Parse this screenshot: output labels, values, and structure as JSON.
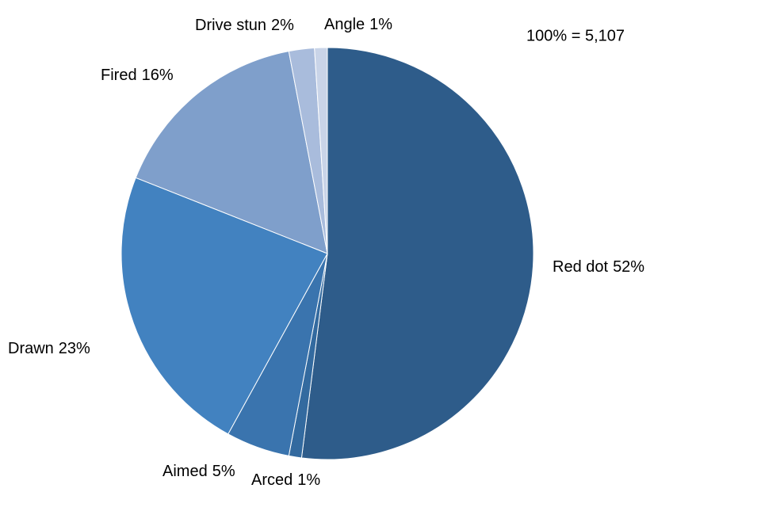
{
  "chart_data": {
    "type": "pie",
    "annotation": "100% = 5,107",
    "categories": [
      "Red dot",
      "Arced",
      "Aimed",
      "Drawn",
      "Fired",
      "Drive stun",
      "Angle"
    ],
    "values": [
      52,
      1,
      5,
      23,
      16,
      2,
      1
    ],
    "value_labels": [
      "52%",
      "1%",
      "5%",
      "23%",
      "16%",
      "2%",
      "1%"
    ],
    "colors": [
      "#2e5c8a",
      "#336a9f",
      "#3a74ae",
      "#4282c0",
      "#7f9fcb",
      "#a9bcdc",
      "#c9d4e8"
    ]
  }
}
